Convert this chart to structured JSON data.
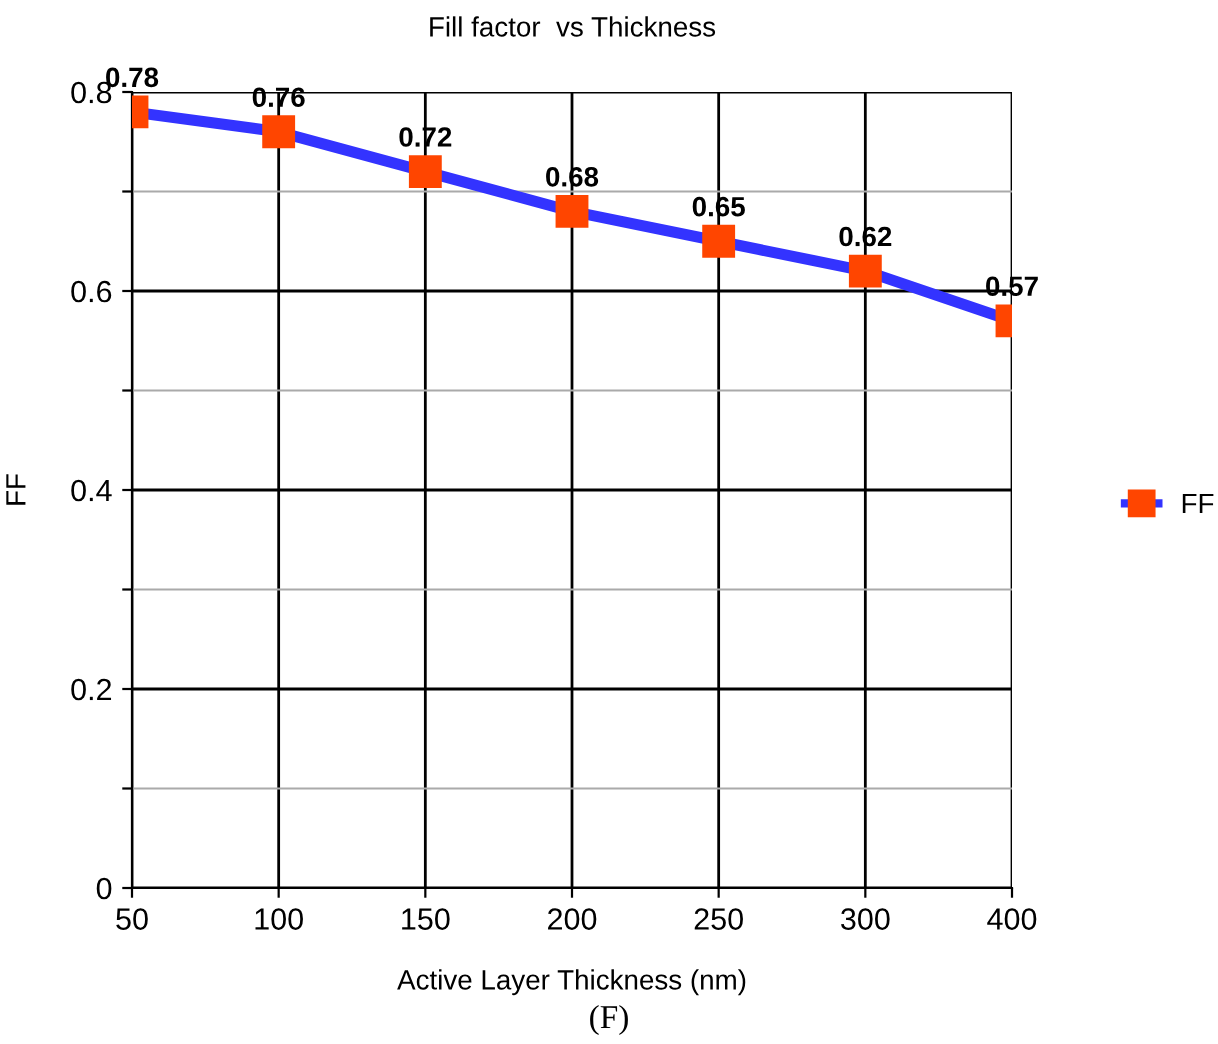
{
  "chart_data": {
    "type": "line",
    "title": "Fill factor  vs Thickness",
    "xlabel": "Active Layer Thickness (nm)",
    "ylabel": "FF",
    "categories": [
      "50",
      "100",
      "150",
      "200",
      "250",
      "300",
      "400"
    ],
    "series": [
      {
        "name": "FF",
        "color": "#3333ff",
        "colors": [
          "#ff4500",
          "#ff4500",
          "#ff4500",
          "#ff4500",
          "#ff4500",
          "#ff4500",
          "#ff4500"
        ],
        "values": [
          0.78,
          0.76,
          0.72,
          0.68,
          0.65,
          0.62,
          0.57
        ]
      }
    ],
    "ylim": [
      0,
      0.8
    ],
    "yticks": [
      0,
      {
        "value": 0.1,
        "label": null
      },
      0.2,
      {
        "value": 0.3,
        "label": null
      },
      0.4,
      {
        "value": 0.5,
        "label": null
      },
      0.6,
      {
        "value": 0.7,
        "label": null
      },
      0.8
    ],
    "grid": true,
    "legend": "right",
    "marker": "square",
    "line_style": "solid",
    "data_labels": true,
    "annotations": [
      "(F)"
    ]
  }
}
